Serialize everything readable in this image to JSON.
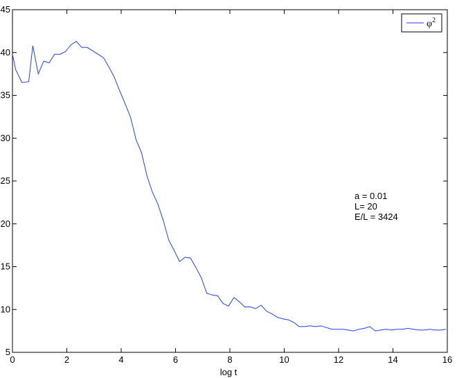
{
  "chart_data": {
    "type": "line",
    "xlabel": "log  t",
    "ylabel": "",
    "xlim": [
      0,
      16
    ],
    "ylim": [
      5,
      45
    ],
    "xticks": [
      0,
      2,
      4,
      6,
      8,
      10,
      12,
      14,
      16
    ],
    "yticks": [
      5,
      10,
      15,
      20,
      25,
      30,
      35,
      40,
      45
    ],
    "grid": false,
    "legend": {
      "placement": "top-right",
      "entries": [
        {
          "label": "φ",
          "superscript": "2"
        }
      ]
    },
    "annotations": [
      "a = 0.01",
      "L= 20",
      "E/L = 3424"
    ],
    "series": [
      {
        "name": "φ²",
        "color": "#1f3fff",
        "x": [
          0,
          0.12,
          0.35,
          0.6,
          0.75,
          0.95,
          1.15,
          1.35,
          1.55,
          1.75,
          1.95,
          2.15,
          2.35,
          2.55,
          2.75,
          2.95,
          3.15,
          3.35,
          3.55,
          3.75,
          3.95,
          4.15,
          4.35,
          4.55,
          4.75,
          4.95,
          5.15,
          5.35,
          5.55,
          5.75,
          5.95,
          6.15,
          6.35,
          6.55,
          6.75,
          6.95,
          7.15,
          7.35,
          7.55,
          7.75,
          7.95,
          8.15,
          8.35,
          8.55,
          8.75,
          8.95,
          9.15,
          9.35,
          9.55,
          9.75,
          9.95,
          10.15,
          10.35,
          10.55,
          10.75,
          10.95,
          11.15,
          11.35,
          11.55,
          11.75,
          11.95,
          12.15,
          12.35,
          12.55,
          12.75,
          12.95,
          13.15,
          13.35,
          13.55,
          13.75,
          13.95,
          14.15,
          14.35,
          14.55,
          14.75,
          14.95,
          15.15,
          15.35,
          15.55,
          15.75,
          15.95
        ],
        "y": [
          39.8,
          38.0,
          36.5,
          36.6,
          40.8,
          37.5,
          39.0,
          38.8,
          39.8,
          39.8,
          40.1,
          40.9,
          41.3,
          40.6,
          40.6,
          40.2,
          39.8,
          39.4,
          38.3,
          37.1,
          35.5,
          34.0,
          32.4,
          29.8,
          28.3,
          25.6,
          23.7,
          22.3,
          20.4,
          18.1,
          16.9,
          15.6,
          16.1,
          16.0,
          14.9,
          13.7,
          11.9,
          11.7,
          11.6,
          10.7,
          10.4,
          11.4,
          10.9,
          10.3,
          10.3,
          10.1,
          10.5,
          9.8,
          9.5,
          9.1,
          8.9,
          8.8,
          8.5,
          8.0,
          8.0,
          8.1,
          8.0,
          8.1,
          7.9,
          7.7,
          7.7,
          7.7,
          7.6,
          7.5,
          7.7,
          7.8,
          8.0,
          7.5,
          7.6,
          7.7,
          7.6,
          7.7,
          7.7,
          7.8,
          7.7,
          7.6,
          7.6,
          7.7,
          7.6,
          7.6,
          7.7
        ]
      }
    ]
  }
}
